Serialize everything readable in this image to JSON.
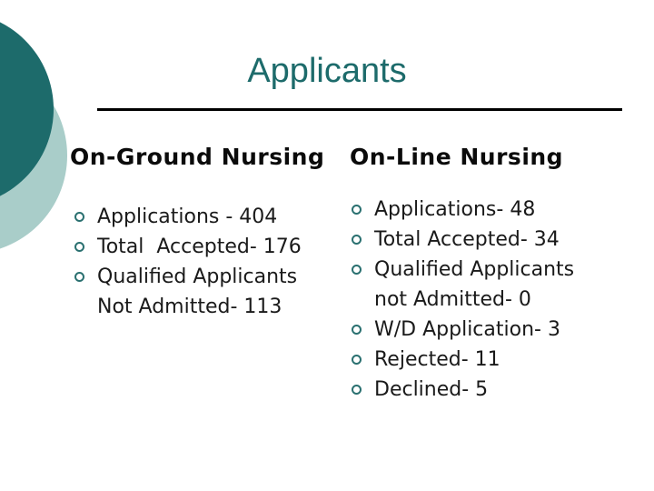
{
  "slide": {
    "title": "Applicants",
    "columns": [
      {
        "heading": "On-Ground Nursing",
        "items": [
          "Applications - 404",
          "Total  Accepted- 176",
          "Qualified Applicants\nNot Admitted- 113"
        ]
      },
      {
        "heading": "On-Line Nursing",
        "items": [
          "Applications- 48",
          "Total Accepted- 34",
          "Qualified Applicants\nnot Admitted- 0",
          "W/D Application- 3",
          "Rejected- 11",
          "Declined- 5"
        ]
      }
    ]
  },
  "colors": {
    "title": "#1d6b6b",
    "accent_dark": "#1d6b6b",
    "accent_light": "#a9cdc9",
    "bullet_ring": "#2a7070",
    "heading": "#0b0b0b",
    "text": "#1a1a1a",
    "rule": "#000000"
  }
}
